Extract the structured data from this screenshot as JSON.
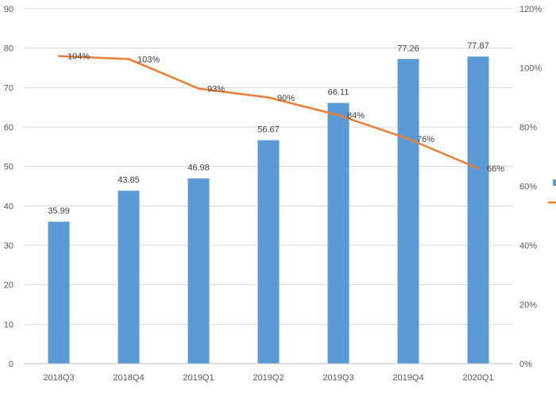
{
  "chart_data": {
    "type": "bar",
    "categories": [
      "2018Q3",
      "2018Q4",
      "2019Q1",
      "2019Q2",
      "2019Q3",
      "2019Q4",
      "2020Q1"
    ],
    "series": [
      {
        "type": "bar",
        "axis": "left",
        "color": "#5b9bd5",
        "values": [
          35.99,
          43.85,
          46.98,
          56.67,
          66.11,
          77.26,
          77.87
        ],
        "labels": [
          "35.99",
          "43.85",
          "46.98",
          "56.67",
          "66.11",
          "77.26",
          "77.87"
        ]
      },
      {
        "type": "line",
        "axis": "right",
        "color": "#ed7d31",
        "values": [
          104,
          103,
          93,
          90,
          84,
          76,
          66
        ],
        "labels": [
          "104%",
          "103%",
          "93%",
          "90%",
          "84%",
          "76%",
          "66%"
        ]
      }
    ],
    "y_left": {
      "ylim": [
        0,
        90
      ],
      "ticks": [
        0,
        10,
        20,
        30,
        40,
        50,
        60,
        70,
        80,
        90
      ],
      "tick_labels": [
        "0",
        "10",
        "20",
        "30",
        "40",
        "50",
        "60",
        "70",
        "80",
        "90"
      ]
    },
    "y_right": {
      "ylim": [
        0,
        120
      ],
      "ticks": [
        0,
        20,
        40,
        60,
        80,
        100,
        120
      ],
      "tick_labels": [
        "0%",
        "20%",
        "40%",
        "60%",
        "80%",
        "100%",
        "120%"
      ]
    },
    "grid": true,
    "legend_position": "right (cropped)",
    "title": "",
    "xlabel": "",
    "ylabel": ""
  }
}
